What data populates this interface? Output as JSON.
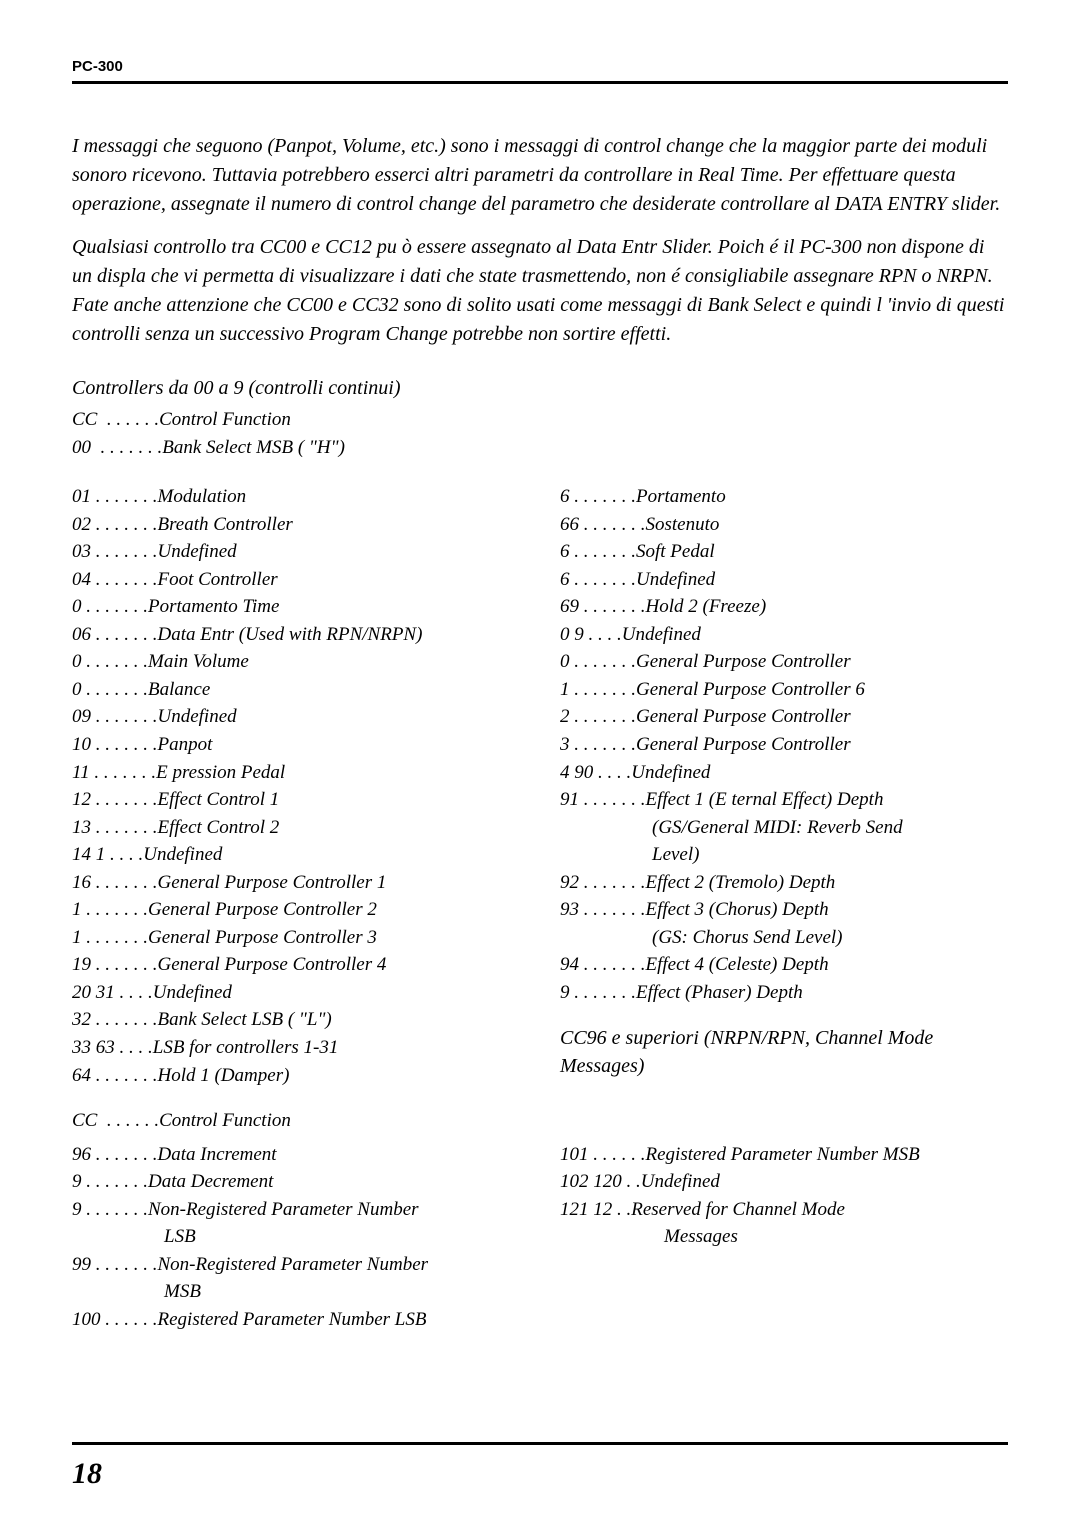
{
  "header": "PC-300",
  "page_number": "18",
  "intro1": "I messaggi che seguono (Panpot, Volume, etc.) sono i messaggi di control change che la maggior parte dei moduli sonoro ricevono.  Tuttavia potrebbero esserci altri parametri da controllare in Real Time. Per effettuare questa operazione, assegnate il numero di control change del parametro che desiderate controllare al DATA ENTRY slider.",
  "intro2": "Qualsiasi controllo tra CC00 e CC12   pu  ò essere assegnato al Data Entr   Slider. Poich é il PC-300 non dispone di un displa   che vi permetta di visualizzare i dati che state trasmettendo, non   é consigliabile assegnare RPN o  NRPN. Fate anche attenzione che CC00 e CC32 sono di solito usati come messaggi di Bank Select e quindi l    'invio di questi controlli senza un successivo Program Change potrebbe non sortire effetti.",
  "section_title": "Controllers da 00 a 9   (controlli continui)",
  "cc_heading1": "CC  . . . . . .Control Function",
  "cc_heading2": "00  . . . . . . .Bank Select MSB ( \"H\")",
  "col1": [
    {
      "n": "01",
      "t": "Modulation"
    },
    {
      "n": "02",
      "t": "Breath Controller"
    },
    {
      "n": "03",
      "t": "Undefined"
    },
    {
      "n": "04",
      "t": "Foot Controller"
    },
    {
      "n": "0",
      "t": "Portamento Time"
    },
    {
      "n": "06",
      "t": "Data Entr   (Used with RPN/NRPN)"
    },
    {
      "n": "0",
      "t": "Main Volume"
    },
    {
      "n": "0",
      "t": "Balance"
    },
    {
      "n": "09",
      "t": "Undefined"
    },
    {
      "n": "10",
      "t": "Panpot"
    },
    {
      "n": "11",
      "t": "E  pression Pedal"
    },
    {
      "n": "12",
      "t": "Effect Control 1"
    },
    {
      "n": "13",
      "t": "Effect Control 2"
    },
    {
      "n": "14  1",
      "t": "Undefined",
      "short": true
    },
    {
      "n": "16",
      "t": "General Purpose Controller 1"
    },
    {
      "n": "1",
      "t": "General Purpose Controller 2"
    },
    {
      "n": "1",
      "t": "General Purpose Controller 3"
    },
    {
      "n": "19",
      "t": "General Purpose Controller 4"
    },
    {
      "n": "20  31",
      "t": "Undefined",
      "short": true
    },
    {
      "n": "32",
      "t": "Bank Select LSB ( \"L\")"
    },
    {
      "n": "33  63",
      "t": "LSB for controllers 1-31",
      "short": true
    },
    {
      "n": "64",
      "t": "Hold 1 (Damper)"
    }
  ],
  "col2": [
    {
      "n": "6",
      "t": "Portamento"
    },
    {
      "n": "66",
      "t": "Sostenuto"
    },
    {
      "n": "6",
      "t": "Soft Pedal"
    },
    {
      "n": "6",
      "t": "Undefined"
    },
    {
      "n": "69",
      "t": "Hold 2 (Freeze)"
    },
    {
      "n": " 0   9",
      "t": "Undefined",
      "short": true
    },
    {
      "n": " 0",
      "t": "General Purpose Controller"
    },
    {
      "n": " 1",
      "t": "General Purpose Controller 6"
    },
    {
      "n": " 2",
      "t": "General Purpose Controller"
    },
    {
      "n": " 3",
      "t": "General Purpose Controller"
    },
    {
      "n": " 4  90",
      "t": "Undefined",
      "short": true
    },
    {
      "n": "91",
      "t": "Effect 1 (E  ternal Effect) Depth",
      "cont": [
        "(GS/General MIDI: Reverb Send",
        "Level)"
      ]
    },
    {
      "n": "92",
      "t": "Effect 2 (Tremolo) Depth"
    },
    {
      "n": "93",
      "t": "Effect 3 (Chorus) Depth",
      "cont": [
        "(GS: Chorus Send Level)"
      ]
    },
    {
      "n": "94",
      "t": "Effect 4 (Celeste) Depth"
    },
    {
      "n": "9",
      "t": "Effect   (Phaser) Depth"
    }
  ],
  "subsection2": "CC96 e superiori (NRPN/RPN, Channel Mode Messages)",
  "cc_heading3": "CC  . . . . . .Control Function",
  "col3": [
    {
      "n": "96",
      "t": "Data Increment"
    },
    {
      "n": "9",
      "t": "Data Decrement"
    },
    {
      "n": "9",
      "t": "Non-Registered Parameter Number",
      "cont": [
        "LSB"
      ]
    },
    {
      "n": "99",
      "t": "Non-Registered Parameter Number",
      "cont": [
        "MSB"
      ]
    },
    {
      "n": "100",
      "t": "Registered Parameter Number LSB",
      "six": true
    }
  ],
  "col4": [
    {
      "n": "101",
      "t": "Registered Parameter Number MSB",
      "six": true
    },
    {
      "n": "102  120",
      "t": "Undefined",
      "veryshort": true
    },
    {
      "n": "121  12",
      "t": "Reserved for Channel Mode",
      "veryshort": true,
      "cont": [
        "Messages"
      ]
    }
  ]
}
